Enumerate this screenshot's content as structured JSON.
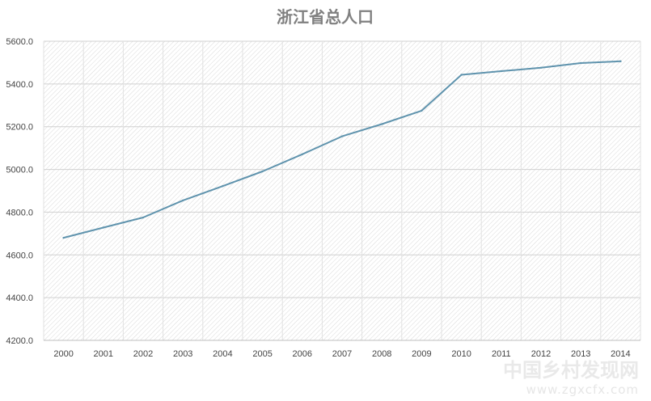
{
  "chart_data": {
    "type": "line",
    "title": "浙江省总人口",
    "xlabel": "",
    "ylabel": "",
    "categories": [
      "2000",
      "2001",
      "2002",
      "2003",
      "2004",
      "2005",
      "2006",
      "2007",
      "2008",
      "2009",
      "2010",
      "2011",
      "2012",
      "2013",
      "2014"
    ],
    "series": [
      {
        "values": [
          4680,
          4728,
          4775,
          4855,
          4922,
          4991,
          5071,
          5155,
          5212,
          5275,
          5443,
          5460,
          5476,
          5498,
          5506
        ],
        "color": "#5f93ad"
      }
    ],
    "ylim": [
      4200,
      5600
    ],
    "yticks": [
      "4200.0",
      "4400.0",
      "4600.0",
      "4800.0",
      "5000.0",
      "5200.0",
      "5400.0",
      "5600.0"
    ],
    "grid": true,
    "legend": "none"
  },
  "watermark": {
    "logo_text": "中国乡村发现网",
    "url": "www.zgxcfx.com"
  }
}
